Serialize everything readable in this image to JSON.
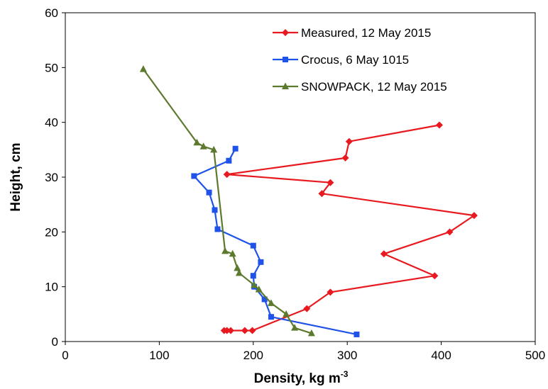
{
  "chart_data": {
    "type": "line",
    "title": "",
    "xlabel": "Density, kg m",
    "xlabel_superscript": "-3",
    "ylabel": "Height, cm",
    "xlim": [
      0,
      500
    ],
    "ylim": [
      0,
      60
    ],
    "xticks": [
      0,
      100,
      200,
      300,
      400,
      500
    ],
    "yticks": [
      0,
      10,
      20,
      30,
      40,
      50,
      60
    ],
    "grid": false,
    "legend_position": "top-right",
    "series": [
      {
        "name": "Measured, 12 May 2015",
        "color": "#e8191f",
        "marker": "diamond",
        "points": [
          [
            398,
            39.5
          ],
          [
            302,
            36.5
          ],
          [
            298,
            33.5
          ],
          [
            172,
            30.5
          ],
          [
            282,
            29.0
          ],
          [
            273,
            27.0
          ],
          [
            435,
            23.0
          ],
          [
            409,
            20.0
          ],
          [
            339,
            16.0
          ],
          [
            393,
            12.0
          ],
          [
            282,
            9.0
          ],
          [
            257,
            6.0
          ],
          [
            199,
            2.0
          ],
          [
            191,
            2.0
          ],
          [
            176,
            2.0
          ],
          [
            172,
            2.0
          ],
          [
            169,
            2.0
          ]
        ]
      },
      {
        "name": "Crocus, 6 May 1015",
        "color": "#1f52e8",
        "marker": "square",
        "points": [
          [
            181,
            35.2
          ],
          [
            174,
            33.0
          ],
          [
            137,
            30.2
          ],
          [
            153,
            27.2
          ],
          [
            159,
            24.0
          ],
          [
            162,
            20.5
          ],
          [
            200,
            17.5
          ],
          [
            208,
            14.5
          ],
          [
            200,
            12.0
          ],
          [
            201,
            10.0
          ],
          [
            212,
            7.7
          ],
          [
            219,
            4.5
          ],
          [
            310,
            1.3
          ]
        ]
      },
      {
        "name": "SNOWPACK, 12 May 2015",
        "color": "#5c7a2e",
        "marker": "triangle",
        "points": [
          [
            83,
            49.7
          ],
          [
            140,
            36.3
          ],
          [
            147,
            35.6
          ],
          [
            158,
            35.0
          ],
          [
            170,
            16.5
          ],
          [
            178,
            16.0
          ],
          [
            183,
            13.4
          ],
          [
            185,
            12.5
          ],
          [
            201,
            10.3
          ],
          [
            206,
            9.5
          ],
          [
            219,
            7.0
          ],
          [
            235,
            5.0
          ],
          [
            244,
            2.5
          ],
          [
            262,
            1.5
          ]
        ]
      }
    ]
  }
}
